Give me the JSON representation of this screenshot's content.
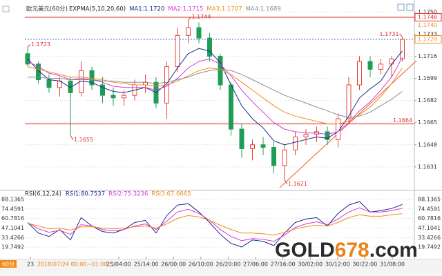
{
  "chart_data": {
    "type": "candlestick",
    "title": "欧元美元(60分)",
    "indicator": "EXPMA(5,10,20,60)",
    "open": [
      1.1718,
      1.171,
      1.1698,
      1.1692,
      1.1697,
      1.1688,
      1.1705,
      1.1694,
      1.1686,
      1.1684,
      1.1686,
      1.1694,
      1.1696,
      1.168,
      1.1708,
      1.1732,
      1.1738,
      1.173,
      1.1716,
      1.1694,
      1.166,
      1.1645,
      1.1648,
      1.1646,
      1.1632,
      1.1644,
      1.1654,
      1.1656,
      1.1658,
      1.1652,
      1.1668,
      1.1694,
      1.1712,
      1.1706,
      1.171,
      1.1714
    ],
    "high": [
      1.1723,
      1.1712,
      1.1702,
      1.17,
      1.17,
      1.1712,
      1.1708,
      1.17,
      1.1692,
      1.169,
      1.1698,
      1.1702,
      1.17,
      1.1712,
      1.1738,
      1.1744,
      1.1742,
      1.1734,
      1.1718,
      1.1696,
      1.1664,
      1.1652,
      1.1654,
      1.165,
      1.1648,
      1.1658,
      1.166,
      1.1662,
      1.1662,
      1.1672,
      1.17,
      1.1716,
      1.1716,
      1.1714,
      1.1716,
      1.1731
    ],
    "low": [
      1.1708,
      1.1695,
      1.1688,
      1.1685,
      1.1655,
      1.1685,
      1.169,
      1.168,
      1.1678,
      1.1678,
      1.1682,
      1.1688,
      1.1676,
      1.1668,
      1.1704,
      1.1726,
      1.1726,
      1.1712,
      1.169,
      1.1655,
      1.1638,
      1.1636,
      1.164,
      1.1626,
      1.1621,
      1.164,
      1.1648,
      1.165,
      1.1648,
      1.1646,
      1.1664,
      1.169,
      1.17,
      1.1702,
      1.17,
      1.1712
    ],
    "close": [
      1.171,
      1.1698,
      1.1692,
      1.1697,
      1.1688,
      1.1705,
      1.1694,
      1.1686,
      1.1684,
      1.1686,
      1.1694,
      1.1696,
      1.168,
      1.1708,
      1.1732,
      1.1738,
      1.173,
      1.1716,
      1.1694,
      1.166,
      1.1645,
      1.1648,
      1.1646,
      1.1632,
      1.1644,
      1.1654,
      1.1656,
      1.1658,
      1.1652,
      1.1668,
      1.1694,
      1.1712,
      1.1706,
      1.171,
      1.1714,
      1.1729
    ],
    "up_color": "#e8413a",
    "down_color": "#1f9d55",
    "series": [
      {
        "name": "MA1:1.1720",
        "color": "#1c2a8c",
        "values": [
          1.1714,
          1.1705,
          1.1698,
          1.1697,
          1.1692,
          1.1697,
          1.1696,
          1.1692,
          1.1689,
          1.1688,
          1.169,
          1.1692,
          1.1688,
          1.1695,
          1.1707,
          1.1718,
          1.1722,
          1.172,
          1.1711,
          1.1694,
          1.1678,
          1.1668,
          1.1661,
          1.1651,
          1.1648,
          1.165,
          1.1652,
          1.1654,
          1.1653,
          1.1658,
          1.167,
          1.1684,
          1.1691,
          1.1697,
          1.171,
          1.172
        ]
      },
      {
        "name": "MA2:1.1715",
        "color": "#d63bd6",
        "values": [
          1.1712,
          1.1708,
          1.1703,
          1.1701,
          1.1698,
          1.1699,
          1.1698,
          1.1696,
          1.1693,
          1.1692,
          1.1692,
          1.1692,
          1.169,
          1.1693,
          1.1699,
          1.1707,
          1.1712,
          1.1714,
          1.171,
          1.1701,
          1.169,
          1.1681,
          1.1673,
          1.1665,
          1.166,
          1.1658,
          1.1657,
          1.1657,
          1.1656,
          1.1658,
          1.1665,
          1.1674,
          1.1681,
          1.169,
          1.17,
          1.1715
        ]
      },
      {
        "name": "MA3:1.1707",
        "color": "#f08c1a",
        "values": [
          1.1708,
          1.1706,
          1.1704,
          1.1702,
          1.17,
          1.17,
          1.1699,
          1.1698,
          1.1696,
          1.1695,
          1.1694,
          1.1694,
          1.1693,
          1.1694,
          1.1697,
          1.1701,
          1.1705,
          1.1707,
          1.1706,
          1.1702,
          1.1696,
          1.169,
          1.1684,
          1.1678,
          1.1673,
          1.167,
          1.1668,
          1.1666,
          1.1664,
          1.1664,
          1.1666,
          1.1671,
          1.1677,
          1.1685,
          1.1695,
          1.1707
        ]
      },
      {
        "name": "MA4:1.1689",
        "color": "#8c8c8c",
        "values": [
          1.17,
          1.17,
          1.1699,
          1.1699,
          1.1698,
          1.1698,
          1.1698,
          1.1697,
          1.1697,
          1.1696,
          1.1696,
          1.1696,
          1.1695,
          1.1696,
          1.1698,
          1.17,
          1.1703,
          1.1705,
          1.1706,
          1.1705,
          1.1702,
          1.1698,
          1.1694,
          1.169,
          1.1686,
          1.1683,
          1.168,
          1.1677,
          1.1674,
          1.1671,
          1.1669,
          1.167,
          1.1673,
          1.1678,
          1.1683,
          1.1689
        ]
      }
    ],
    "ylim": [
      1.1615,
      1.1755
    ],
    "yticks": [
      {
        "value": 1.175,
        "label": "1.1750"
      },
      1.1733,
      1.1716,
      1.1699,
      1.1682,
      1.1665,
      1.1648,
      1.1631
    ],
    "grid": true,
    "hlines": [
      {
        "value": 1.1746,
        "color": "#e0302a",
        "dash": false,
        "end_label": false
      },
      {
        "value": 1.1664,
        "color": "#e0302a",
        "dash": false,
        "end_label": true
      },
      {
        "value": 1.1729,
        "color": "#4a6fd8",
        "dash": true,
        "end_label": false
      }
    ],
    "axis_marks": [
      {
        "value": 1.1746,
        "color": "#e0302a",
        "box": true
      },
      {
        "value": 1.174,
        "label": "1.1740",
        "color": "#f08c1a",
        "box": false
      },
      {
        "value": 1.1729,
        "color": "#f08c1a",
        "box": true
      }
    ],
    "annotations": [
      {
        "value": 1.1723,
        "kind": "high"
      },
      {
        "value": 1.1655,
        "kind": "low"
      },
      {
        "value": 1.1744,
        "kind": "high"
      },
      {
        "value": 1.1621,
        "kind": "low"
      },
      {
        "value": 1.1731,
        "kind": "high"
      }
    ],
    "annotation_color": "#e0302a",
    "rsi": {
      "title": "RSI(6,12,24)",
      "series": [
        {
          "name": "RSI1:80.7537",
          "color": "#1c2a8c",
          "values": [
            55,
            40,
            35,
            45,
            30,
            62,
            50,
            42,
            40,
            45,
            55,
            58,
            40,
            65,
            80,
            82,
            70,
            55,
            38,
            25,
            20,
            30,
            28,
            22,
            40,
            55,
            60,
            62,
            50,
            68,
            80,
            85,
            70,
            72,
            75,
            80.75
          ]
        },
        {
          "name": "RSI2:75.3236",
          "color": "#d63bd6",
          "values": [
            55,
            46,
            41,
            44,
            38,
            52,
            50,
            45,
            43,
            45,
            50,
            53,
            45,
            57,
            70,
            74,
            68,
            58,
            45,
            35,
            29,
            32,
            31,
            28,
            37,
            48,
            53,
            56,
            52,
            60,
            70,
            76,
            70,
            70,
            72,
            75.32
          ]
        },
        {
          "name": "RSI3:67.6665",
          "color": "#f08c1a",
          "values": [
            54,
            50,
            46,
            47,
            44,
            49,
            49,
            47,
            46,
            47,
            49,
            50,
            47,
            53,
            61,
            65,
            63,
            58,
            51,
            45,
            40,
            40,
            39,
            37,
            41,
            46,
            49,
            51,
            50,
            55,
            62,
            66,
            64,
            64,
            66,
            67.67
          ]
        }
      ],
      "ylim": [
        6.0718,
        95
      ],
      "yticks": [
        88.1365,
        74.4591,
        60.7816,
        47.1041,
        33.4266,
        19.7492
      ]
    },
    "period": "60分",
    "date_label": "2018/07/24 00:00~01:00 二",
    "x_labels": [
      "23",
      "25/04:00",
      "25/14:00",
      "26/00:00",
      "26/10:00",
      "26/20:00",
      "27/06:00",
      "27/16:00",
      "30/02:00",
      "30/12:00",
      "30/22:00",
      "31/08:00"
    ],
    "watermark": [
      {
        "text": "GOLD",
        "color": "#2b2b2b"
      },
      {
        "text": "678",
        "color": "#e8821a"
      },
      {
        "text": ".com",
        "color": "#2b2b2b"
      }
    ]
  }
}
